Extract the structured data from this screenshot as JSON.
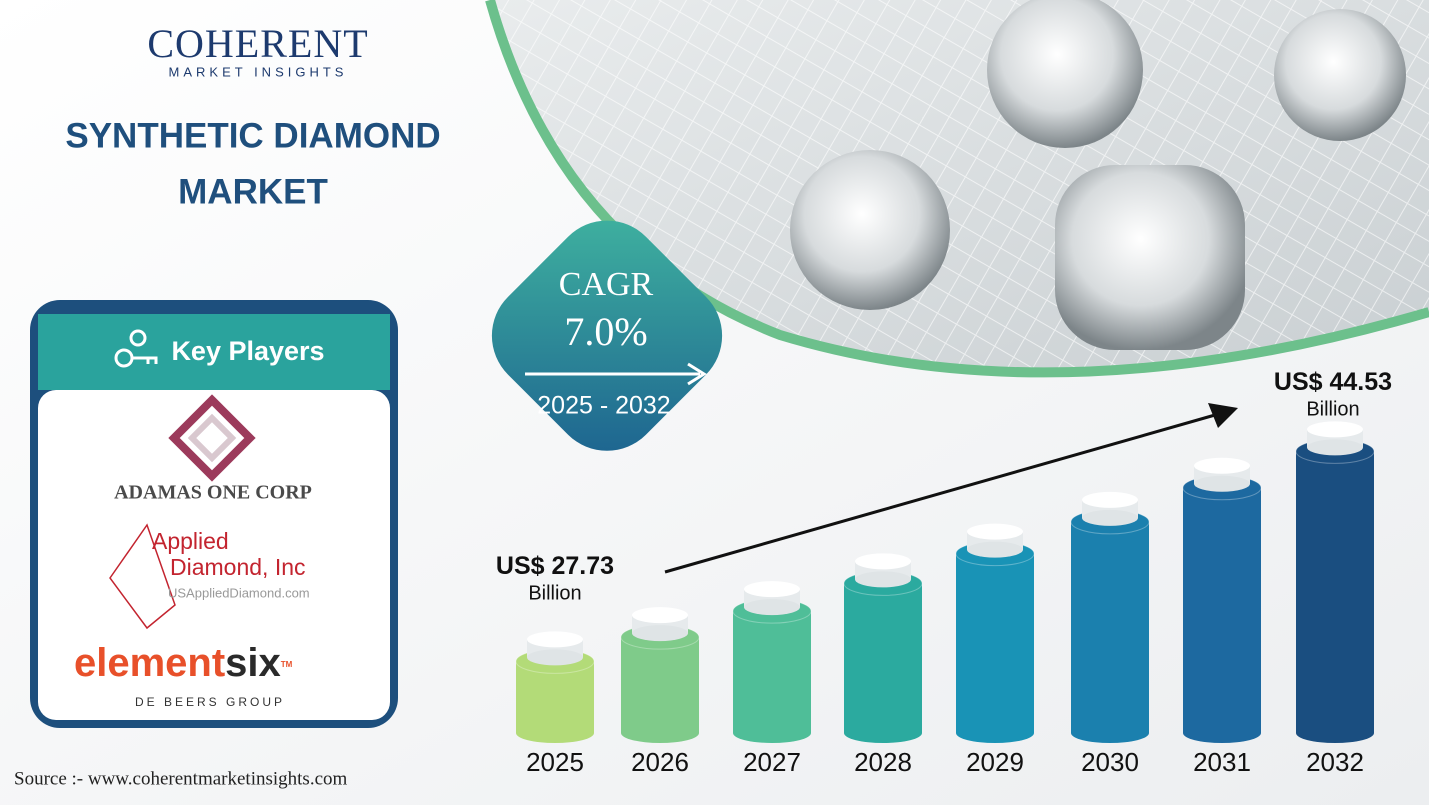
{
  "header": {
    "brand": "COHERENT",
    "brand_sub": "MARKET INSIGHTS",
    "title_lines": [
      "SYNTHETIC DIAMOND",
      "MARKET"
    ]
  },
  "cagr": {
    "label": "CAGR",
    "rate": "7.0%",
    "period": "2025 - 2032"
  },
  "key_players": {
    "heading": "Key Players",
    "adamas": "ADAMAS ONE CORP",
    "applied": {
      "line1": "Applied",
      "line2": "Diamond, Inc",
      "site": "USAppliedDiamond.com"
    },
    "elementsix": {
      "part1": "element",
      "part2": "six",
      "tm": "TM",
      "sub": "DE BEERS GROUP"
    }
  },
  "chart_data": {
    "type": "bar",
    "categories": [
      "2025",
      "2026",
      "2027",
      "2028",
      "2029",
      "2030",
      "2031",
      "2032"
    ],
    "values": [
      27.73,
      29.67,
      31.75,
      33.97,
      36.35,
      38.89,
      41.62,
      44.53
    ],
    "value_labels": [
      "US$ 27.73",
      null,
      null,
      null,
      null,
      null,
      null,
      "US$ 44.53"
    ],
    "value_unit": "Billion",
    "colors": [
      "#b3db78",
      "#7fcb8a",
      "#4fbe98",
      "#2baa9f",
      "#1993b6",
      "#1b80ae",
      "#1d69a0",
      "#1a4e80"
    ],
    "ylim": [
      22,
      46
    ]
  },
  "source": "Source :- www.coherentmarketinsights.com"
}
